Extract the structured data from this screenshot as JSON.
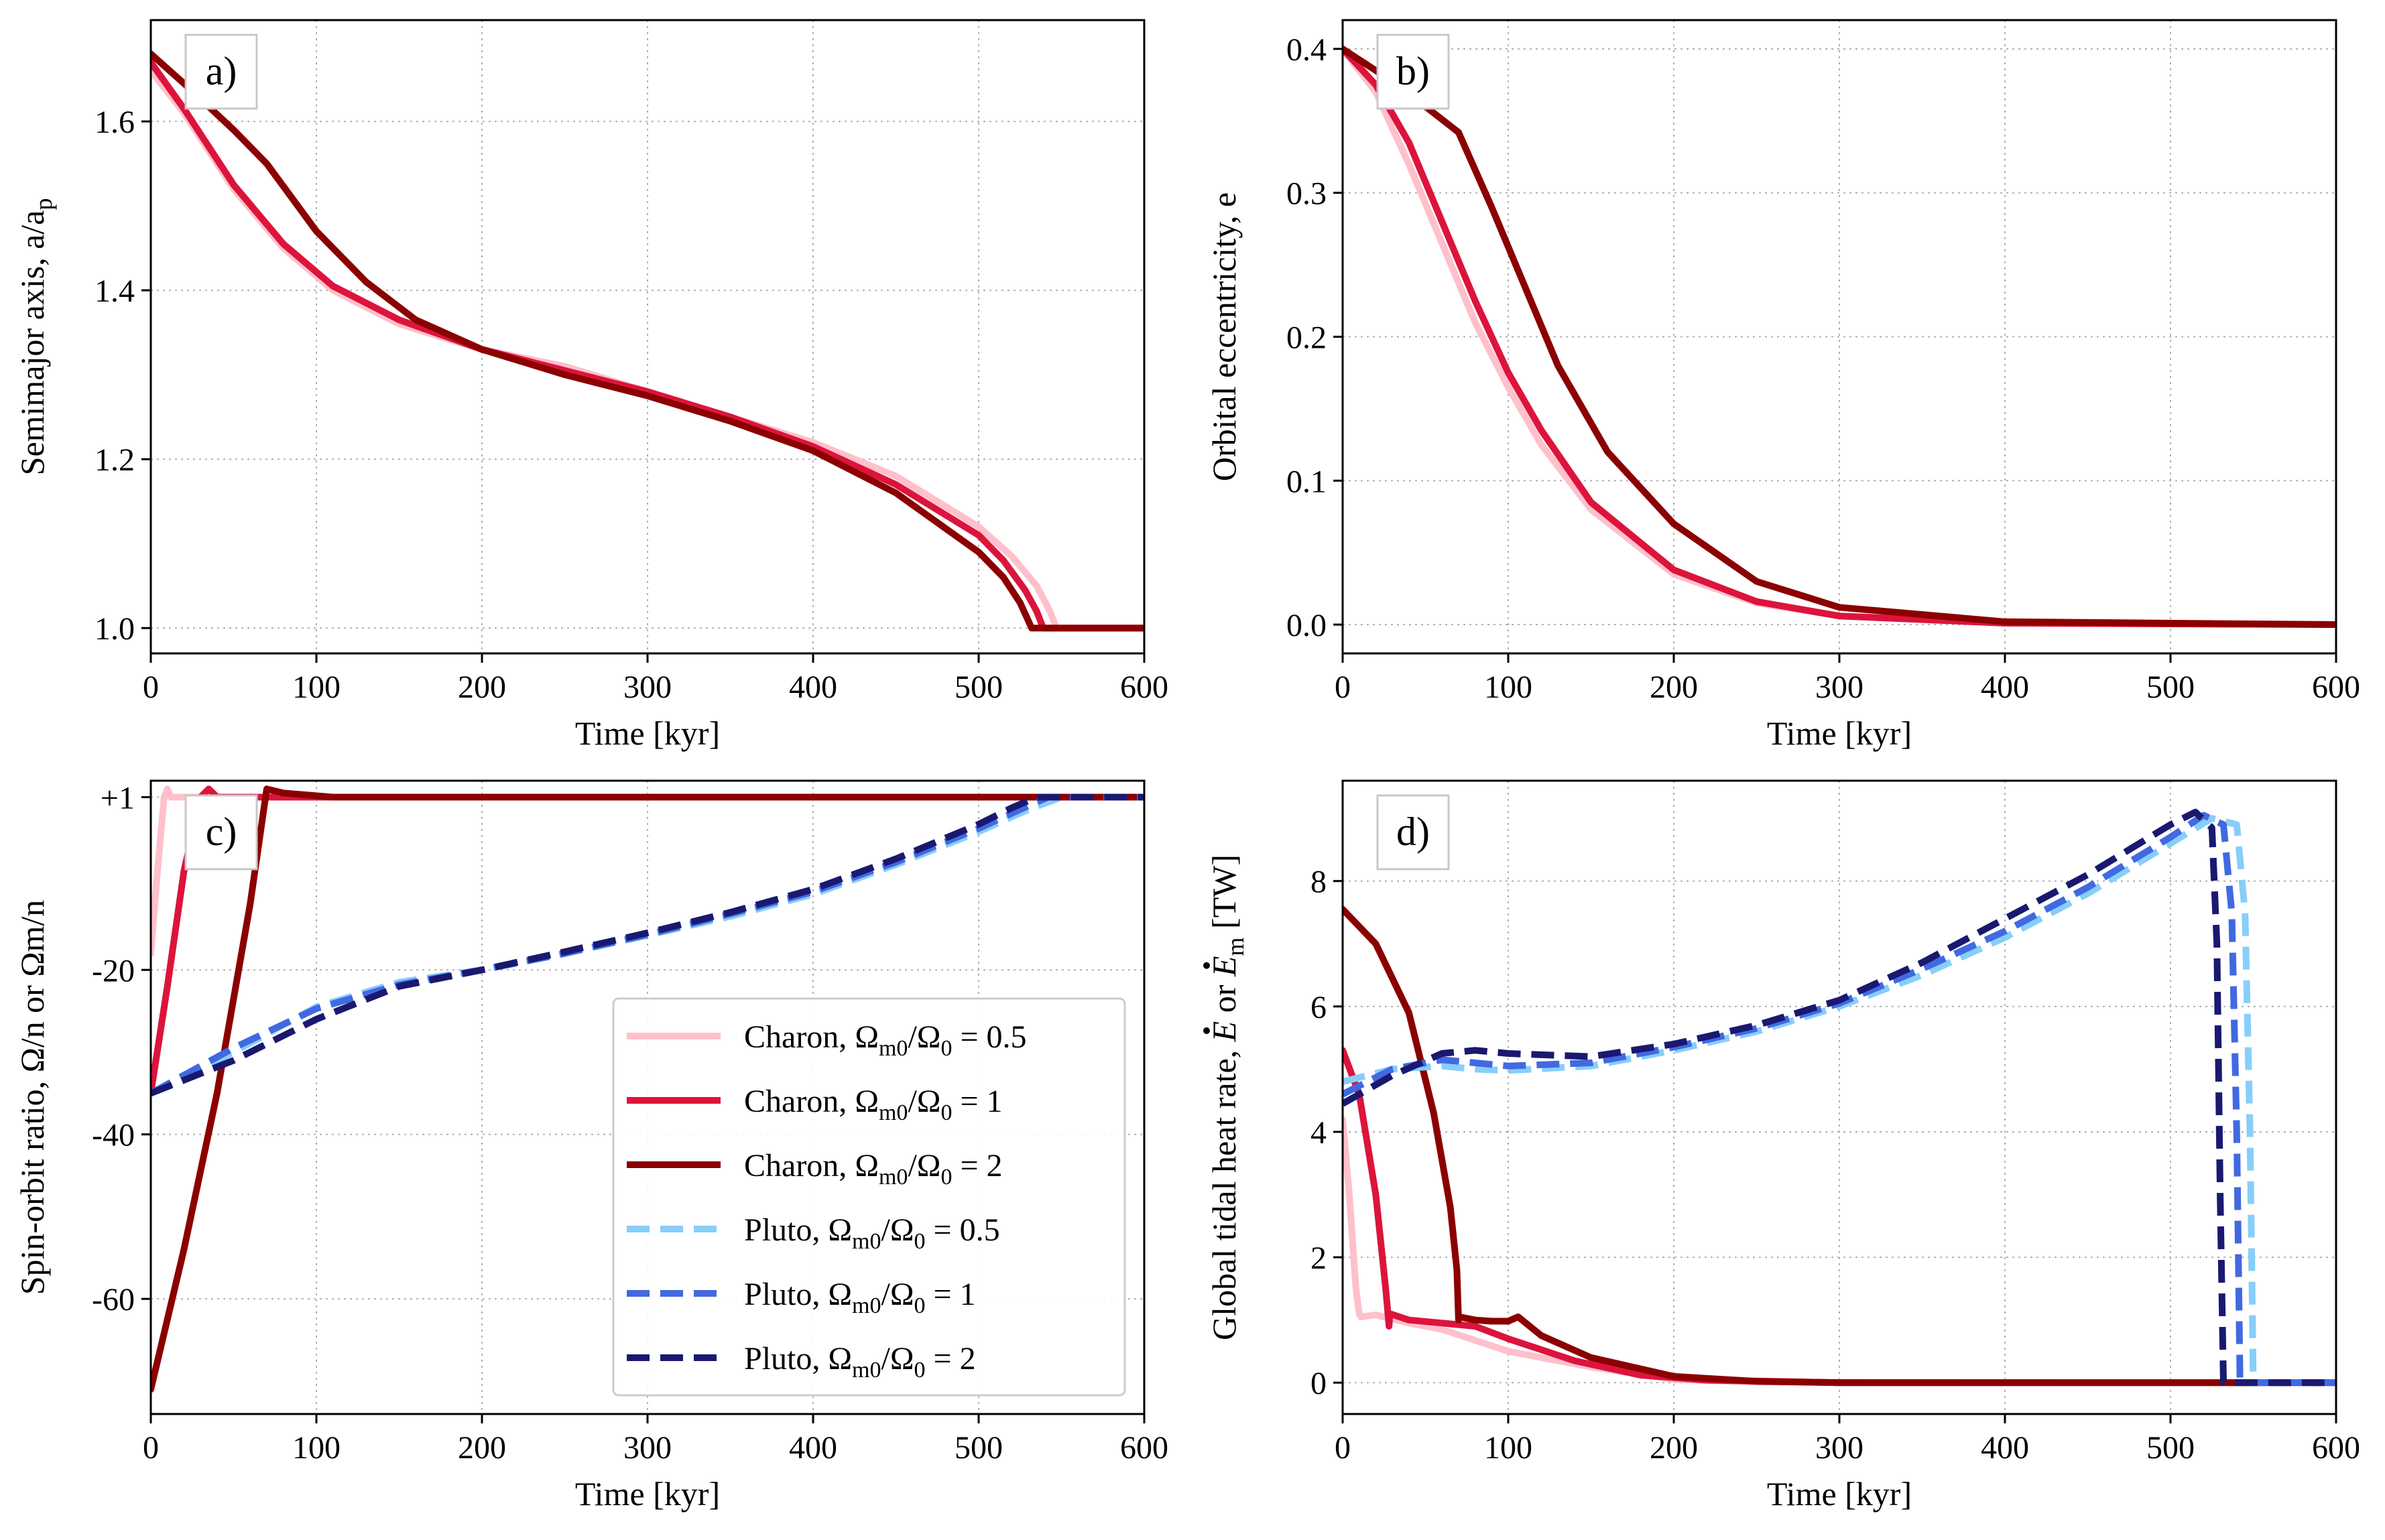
{
  "chart_data": [
    {
      "type": "line",
      "panel": "a)",
      "xlabel": "Time [kyr]",
      "ylabel": "Semimajor axis, a/a",
      "ylabel_sub": "p",
      "xlim": [
        0,
        600
      ],
      "ylim": [
        0.97,
        1.72
      ],
      "xticks": [
        0,
        100,
        200,
        300,
        400,
        500,
        600
      ],
      "yticks": [
        1.0,
        1.2,
        1.4,
        1.6
      ],
      "ytick_labels": [
        "1.0",
        "1.2",
        "1.4",
        "1.6"
      ],
      "grid": true,
      "series": [
        {
          "name": "Charon, Ωm0/Ω0 = 0.5",
          "color": "#ffc0cb",
          "dash": false,
          "x": [
            0,
            20,
            50,
            80,
            110,
            150,
            200,
            250,
            300,
            350,
            400,
            450,
            500,
            520,
            535,
            543,
            547,
            600
          ],
          "y": [
            1.66,
            1.61,
            1.52,
            1.45,
            1.4,
            1.36,
            1.33,
            1.31,
            1.28,
            1.25,
            1.22,
            1.18,
            1.12,
            1.085,
            1.05,
            1.02,
            1.0,
            1.0
          ]
        },
        {
          "name": "Charon, Ωm0/Ω0 = 1",
          "color": "#dc143c",
          "dash": false,
          "x": [
            0,
            20,
            50,
            80,
            110,
            150,
            200,
            250,
            300,
            350,
            400,
            450,
            500,
            515,
            528,
            535,
            539,
            600
          ],
          "y": [
            1.67,
            1.615,
            1.525,
            1.455,
            1.405,
            1.365,
            1.33,
            1.305,
            1.28,
            1.25,
            1.215,
            1.17,
            1.11,
            1.08,
            1.045,
            1.02,
            1.0,
            1.0
          ]
        },
        {
          "name": "Charon, Ωm0/Ω0 = 2",
          "color": "#8b0000",
          "dash": false,
          "x": [
            0,
            20,
            50,
            70,
            100,
            130,
            160,
            200,
            250,
            300,
            350,
            400,
            450,
            500,
            515,
            525,
            532,
            600
          ],
          "y": [
            1.68,
            1.645,
            1.59,
            1.55,
            1.47,
            1.41,
            1.365,
            1.33,
            1.3,
            1.275,
            1.245,
            1.21,
            1.16,
            1.09,
            1.06,
            1.03,
            1.0,
            1.0
          ]
        }
      ]
    },
    {
      "type": "line",
      "panel": "b)",
      "xlabel": "Time [kyr]",
      "ylabel": "Orbital eccentricity, e",
      "xlim": [
        0,
        600
      ],
      "ylim": [
        -0.02,
        0.42
      ],
      "xticks": [
        0,
        100,
        200,
        300,
        400,
        500,
        600
      ],
      "yticks": [
        0.0,
        0.1,
        0.2,
        0.3,
        0.4
      ],
      "ytick_labels": [
        "0.0",
        "0.1",
        "0.2",
        "0.3",
        "0.4"
      ],
      "grid": true,
      "series": [
        {
          "name": "Charon, Ωm0/Ω0 = 0.5",
          "color": "#ffc0cb",
          "dash": false,
          "x": [
            0,
            20,
            40,
            60,
            80,
            100,
            120,
            150,
            200,
            250,
            300,
            400,
            600
          ],
          "y": [
            0.4,
            0.37,
            0.32,
            0.265,
            0.21,
            0.165,
            0.125,
            0.08,
            0.035,
            0.015,
            0.006,
            0.001,
            0.0
          ]
        },
        {
          "name": "Charon, Ωm0/Ω0 = 1",
          "color": "#dc143c",
          "dash": false,
          "x": [
            0,
            20,
            40,
            60,
            80,
            100,
            120,
            150,
            200,
            250,
            300,
            400,
            600
          ],
          "y": [
            0.4,
            0.375,
            0.335,
            0.28,
            0.225,
            0.175,
            0.135,
            0.085,
            0.038,
            0.016,
            0.006,
            0.001,
            0.0
          ]
        },
        {
          "name": "Charon, Ωm0/Ω0 = 2",
          "color": "#8b0000",
          "dash": false,
          "x": [
            0,
            20,
            50,
            70,
            90,
            110,
            130,
            160,
            200,
            250,
            300,
            400,
            600
          ],
          "y": [
            0.4,
            0.385,
            0.36,
            0.342,
            0.29,
            0.235,
            0.18,
            0.12,
            0.07,
            0.03,
            0.012,
            0.002,
            0.0
          ]
        }
      ]
    },
    {
      "type": "line",
      "panel": "c)",
      "xlabel": "Time [kyr]",
      "ylabel": "Spin-orbit ratio, Ω/n or Ωm/n",
      "xlim": [
        0,
        600
      ],
      "ylim": [
        -74,
        3
      ],
      "xticks": [
        0,
        100,
        200,
        300,
        400,
        500,
        600
      ],
      "yticks": [
        1,
        -20,
        -40,
        -60
      ],
      "ytick_labels": [
        "+1",
        "-20",
        "-40",
        "-60"
      ],
      "grid": true,
      "legend": {
        "placement": "lower-right",
        "entries": [
          {
            "prefix": "Charon, ",
            "value": "0.5"
          },
          {
            "prefix": "Charon, ",
            "value": "1"
          },
          {
            "prefix": "Charon, ",
            "value": "2"
          },
          {
            "prefix": "Pluto, ",
            "value": "0.5"
          },
          {
            "prefix": "Pluto, ",
            "value": "1"
          },
          {
            "prefix": "Pluto, ",
            "value": "2"
          }
        ]
      },
      "series": [
        {
          "name": "Charon, Ωm0/Ω0 = 0.5",
          "color": "#ffc0cb",
          "dash": false,
          "x": [
            0,
            4,
            8,
            10,
            12,
            600
          ],
          "y": [
            -18,
            -8,
            1,
            2,
            1,
            1
          ]
        },
        {
          "name": "Charon, Ωm0/Ω0 = 1",
          "color": "#dc143c",
          "dash": false,
          "x": [
            0,
            10,
            20,
            30,
            35,
            40,
            600
          ],
          "y": [
            -35,
            -22,
            -8,
            1,
            2,
            1,
            1
          ]
        },
        {
          "name": "Charon, Ωm0/Ω0 = 2",
          "color": "#8b0000",
          "dash": false,
          "x": [
            0,
            20,
            40,
            60,
            70,
            80,
            110,
            600
          ],
          "y": [
            -71,
            -54,
            -35,
            -12,
            2,
            1.5,
            1,
            1
          ]
        },
        {
          "name": "Pluto, Ωm0/Ω0 = 0.5",
          "color": "#87cefa",
          "dash": true,
          "x": [
            0,
            50,
            100,
            150,
            200,
            250,
            300,
            350,
            400,
            450,
            500,
            530,
            550,
            600
          ],
          "y": [
            -35,
            -30,
            -24.5,
            -21.5,
            -20,
            -18,
            -15.8,
            -13.5,
            -10.8,
            -7.2,
            -3.2,
            -0.5,
            1,
            1
          ]
        },
        {
          "name": "Pluto, Ωm0/Ω0 = 1",
          "color": "#4169e1",
          "dash": true,
          "x": [
            0,
            50,
            100,
            150,
            200,
            250,
            300,
            350,
            400,
            450,
            500,
            525,
            542,
            600
          ],
          "y": [
            -35,
            -29.5,
            -24.7,
            -21.8,
            -20,
            -18,
            -15.7,
            -13.2,
            -10.5,
            -6.9,
            -2.8,
            -0.5,
            1,
            1
          ]
        },
        {
          "name": "Pluto, Ωm0/Ω0 = 2",
          "color": "#191970",
          "dash": true,
          "x": [
            0,
            50,
            100,
            150,
            200,
            250,
            300,
            350,
            400,
            450,
            500,
            520,
            535,
            600
          ],
          "y": [
            -35,
            -31,
            -26,
            -22,
            -20,
            -17.8,
            -15.5,
            -13,
            -10.2,
            -6.5,
            -2.3,
            -0.3,
            1,
            1
          ]
        }
      ]
    },
    {
      "type": "line",
      "panel": "d)",
      "xlabel": "Time [kyr]",
      "ylabel": "Global tidal heat rate,",
      "ylabel_var1": "E",
      "ylabel_mid": " or ",
      "ylabel_var2": "E",
      "ylabel_sub": "m",
      "ylabel_unit": " [TW]",
      "xlim": [
        0,
        600
      ],
      "ylim": [
        -0.5,
        9.6
      ],
      "xticks": [
        0,
        100,
        200,
        300,
        400,
        500,
        600
      ],
      "yticks": [
        0,
        2,
        4,
        6,
        8
      ],
      "ytick_labels": [
        "0",
        "2",
        "4",
        "6",
        "8"
      ],
      "grid": true,
      "series": [
        {
          "name": "Charon, Ωm0/Ω0 = 0.5",
          "color": "#ffc0cb",
          "dash": false,
          "x": [
            0,
            4,
            8,
            10,
            11,
            20,
            40,
            60,
            100,
            150,
            200,
            250,
            600
          ],
          "y": [
            4.2,
            3.0,
            1.5,
            1.1,
            1.05,
            1.08,
            0.95,
            0.85,
            0.5,
            0.25,
            0.05,
            0.01,
            0.0
          ]
        },
        {
          "name": "Charon, Ωm0/Ω0 = 1",
          "color": "#dc143c",
          "dash": false,
          "x": [
            0,
            10,
            20,
            26,
            28,
            28.5,
            40,
            60,
            80,
            100,
            140,
            180,
            220,
            300,
            600
          ],
          "y": [
            5.3,
            4.6,
            3.0,
            1.5,
            0.9,
            1.1,
            1.0,
            0.95,
            0.9,
            0.7,
            0.35,
            0.12,
            0.04,
            0.0,
            0.0
          ]
        },
        {
          "name": "Charon, Ωm0/Ω0 = 2",
          "color": "#8b0000",
          "dash": false,
          "x": [
            0,
            20,
            40,
            55,
            65,
            69,
            70,
            70.5,
            80,
            90,
            100,
            106,
            120,
            150,
            200,
            250,
            300,
            600
          ],
          "y": [
            7.55,
            7.0,
            5.9,
            4.3,
            2.8,
            1.8,
            1.0,
            1.05,
            1.0,
            0.98,
            0.98,
            1.05,
            0.75,
            0.4,
            0.1,
            0.02,
            0.0,
            0.0
          ]
        },
        {
          "name": "Pluto, Ωm0/Ω0 = 0.5",
          "color": "#87cefa",
          "dash": true,
          "x": [
            0,
            30,
            60,
            80,
            100,
            150,
            200,
            250,
            300,
            350,
            400,
            450,
            500,
            525,
            540,
            545,
            548,
            550,
            560,
            600
          ],
          "y": [
            4.8,
            5.0,
            5.05,
            5.0,
            4.98,
            5.05,
            5.3,
            5.6,
            6.0,
            6.5,
            7.1,
            7.8,
            8.6,
            9.0,
            8.9,
            7.5,
            4.0,
            0.0,
            0.0,
            0.0
          ]
        },
        {
          "name": "Pluto, Ωm0/Ω0 = 1",
          "color": "#4169e1",
          "dash": true,
          "x": [
            0,
            30,
            60,
            80,
            100,
            150,
            200,
            250,
            300,
            350,
            400,
            450,
            500,
            520,
            532,
            537,
            540,
            542,
            600
          ],
          "y": [
            4.6,
            5.0,
            5.15,
            5.1,
            5.05,
            5.1,
            5.35,
            5.65,
            6.05,
            6.6,
            7.2,
            7.9,
            8.7,
            9.05,
            8.9,
            7.5,
            4.0,
            0.0,
            0.0
          ]
        },
        {
          "name": "Pluto, Ωm0/Ω0 = 2",
          "color": "#191970",
          "dash": true,
          "x": [
            0,
            30,
            60,
            80,
            100,
            150,
            200,
            250,
            300,
            350,
            400,
            450,
            500,
            515,
            525,
            528,
            530,
            532,
            600
          ],
          "y": [
            4.45,
            4.9,
            5.25,
            5.3,
            5.25,
            5.2,
            5.4,
            5.7,
            6.1,
            6.7,
            7.4,
            8.1,
            8.9,
            9.1,
            8.85,
            7.0,
            3.0,
            0.0,
            0.0
          ]
        }
      ]
    }
  ]
}
